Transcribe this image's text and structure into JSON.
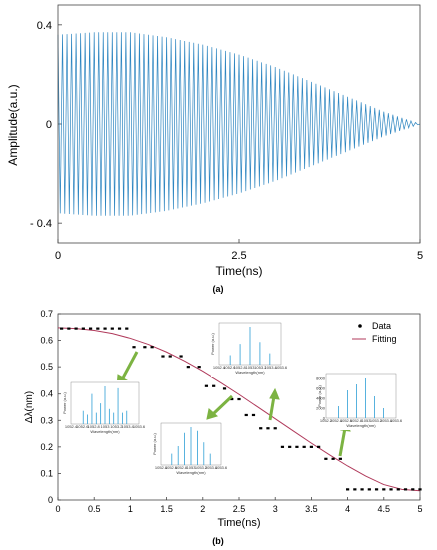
{
  "chart_data": [
    {
      "type": "line",
      "panel_label": "(a)",
      "xlabel": "Time(ns)",
      "ylabel": "Amplitude(a.u.)",
      "xlim": [
        0,
        5
      ],
      "ylim": [
        -0.48,
        0.48
      ],
      "x_ticks": [
        0,
        2.5,
        5
      ],
      "x_tick_labels": [
        "0",
        "2.5",
        "5"
      ],
      "y_ticks": [
        -0.4,
        0,
        0.4
      ],
      "y_tick_labels": [
        "- 0.4",
        "0",
        "0.4"
      ],
      "grid": false,
      "color": "#2e86c1",
      "envelope": {
        "t": [
          0,
          0.5,
          1.0,
          1.5,
          2.0,
          2.5,
          3.0,
          3.5,
          4.0,
          4.5,
          5.0
        ],
        "amplitude": [
          0.36,
          0.37,
          0.37,
          0.35,
          0.32,
          0.28,
          0.23,
          0.17,
          0.11,
          0.05,
          0.0
        ]
      },
      "oscillation_cycles": 80
    },
    {
      "type": "scatter",
      "panel_label": "(b)",
      "xlabel": "Time(ns)",
      "ylabel": "Δλ(nm)",
      "xlim": [
        0,
        5
      ],
      "ylim": [
        0,
        0.7
      ],
      "x_ticks": [
        0,
        0.5,
        1,
        1.5,
        2,
        2.5,
        3,
        3.5,
        4,
        4.5,
        5
      ],
      "x_tick_labels": [
        "0",
        "0.5",
        "1",
        "1.5",
        "2",
        "2.5",
        "3",
        "3.5",
        "4",
        "4.5",
        "5"
      ],
      "y_ticks": [
        0,
        0.1,
        0.2,
        0.3,
        0.4,
        0.5,
        0.6,
        0.7
      ],
      "y_tick_labels": [
        "0",
        "0.1",
        "0.2",
        "0.3",
        "0.4",
        "0.5",
        "0.6",
        "0.7"
      ],
      "grid": false,
      "legend_position": "top-right",
      "series": [
        {
          "name": "Data",
          "kind": "points",
          "color": "#000000",
          "x": [
            0.05,
            0.15,
            0.25,
            0.35,
            0.45,
            0.55,
            0.65,
            0.75,
            0.85,
            0.95,
            1.05,
            1.2,
            1.3,
            1.45,
            1.55,
            1.7,
            1.8,
            1.95,
            2.05,
            2.15,
            2.3,
            2.4,
            2.5,
            2.6,
            2.7,
            2.8,
            2.9,
            3.0,
            3.1,
            3.2,
            3.3,
            3.4,
            3.5,
            3.6,
            3.7,
            3.8,
            3.9,
            4.0,
            4.1,
            4.2,
            4.3,
            4.4,
            4.5,
            4.6,
            4.7,
            4.8,
            4.9,
            5.0
          ],
          "y": [
            0.645,
            0.645,
            0.645,
            0.645,
            0.645,
            0.645,
            0.645,
            0.645,
            0.645,
            0.645,
            0.575,
            0.575,
            0.575,
            0.54,
            0.54,
            0.54,
            0.5,
            0.5,
            0.43,
            0.43,
            0.42,
            0.38,
            0.38,
            0.32,
            0.32,
            0.27,
            0.27,
            0.27,
            0.2,
            0.2,
            0.2,
            0.2,
            0.2,
            0.2,
            0.155,
            0.155,
            0.155,
            0.04,
            0.04,
            0.04,
            0.04,
            0.04,
            0.04,
            0.04,
            0.04,
            0.04,
            0.04,
            0.04
          ]
        },
        {
          "name": "Fitting",
          "kind": "line",
          "color": "#b03a5b",
          "x": [
            0,
            0.25,
            0.5,
            0.75,
            1,
            1.25,
            1.5,
            1.75,
            2,
            2.25,
            2.5,
            2.75,
            3,
            3.25,
            3.5,
            3.75,
            4,
            4.25,
            4.5,
            4.75,
            5
          ],
          "y": [
            0.648,
            0.645,
            0.638,
            0.626,
            0.608,
            0.585,
            0.556,
            0.522,
            0.484,
            0.442,
            0.398,
            0.352,
            0.306,
            0.26,
            0.214,
            0.17,
            0.128,
            0.09,
            0.058,
            0.04,
            0.035
          ]
        }
      ],
      "insets": [
        {
          "id": "inset-1",
          "ylabel": "Power (a.u.)",
          "xlabel": "Wavelength(nm)",
          "x_tick_labels": [
            "1052.4",
            "1052.6",
            "1052.8",
            "1053",
            "1053.2",
            "1053.4",
            "1053.6"
          ],
          "peaks": [
            0.35,
            0.25,
            0.8,
            0.3,
            0.55,
            1.0,
            0.4,
            0.3,
            0.95,
            0.3,
            0.35
          ]
        },
        {
          "id": "inset-2",
          "ylabel": "Power (a.u.)",
          "xlabel": "Wavelength(nm)",
          "x_tick_labels": [
            "1052.4",
            "1052.6",
            "1052.8",
            "1053",
            "1053.2",
            "1053.4",
            "1053.6"
          ],
          "peaks": [
            0.3,
            0.5,
            0.85,
            1.0,
            0.9,
            0.6,
            0.3
          ]
        },
        {
          "id": "inset-3",
          "ylabel": "Power (a.u.)",
          "xlabel": "Wavelength(nm)",
          "x_tick_labels": [
            "1052.4",
            "1052.6",
            "1052.8",
            "1053",
            "1053.2",
            "1053.4",
            "1053.6"
          ],
          "peaks": [
            0.25,
            0.55,
            1.0,
            0.6,
            0.3
          ]
        },
        {
          "id": "inset-4",
          "ylabel": "Power (a.u.)",
          "xlabel": "Wavelength(nm)",
          "x_tick_labels": [
            "1052.2",
            "1052.4",
            "1052.6",
            "1052.8",
            "1053",
            "1053.2",
            "1053.4",
            "1053.6"
          ],
          "y_tick_labels": [
            "0",
            "2000",
            "4000",
            "6000",
            "8000"
          ],
          "peaks": [
            0.3,
            0.7,
            0.85,
            1.0,
            0.55,
            0.25
          ]
        }
      ]
    }
  ]
}
